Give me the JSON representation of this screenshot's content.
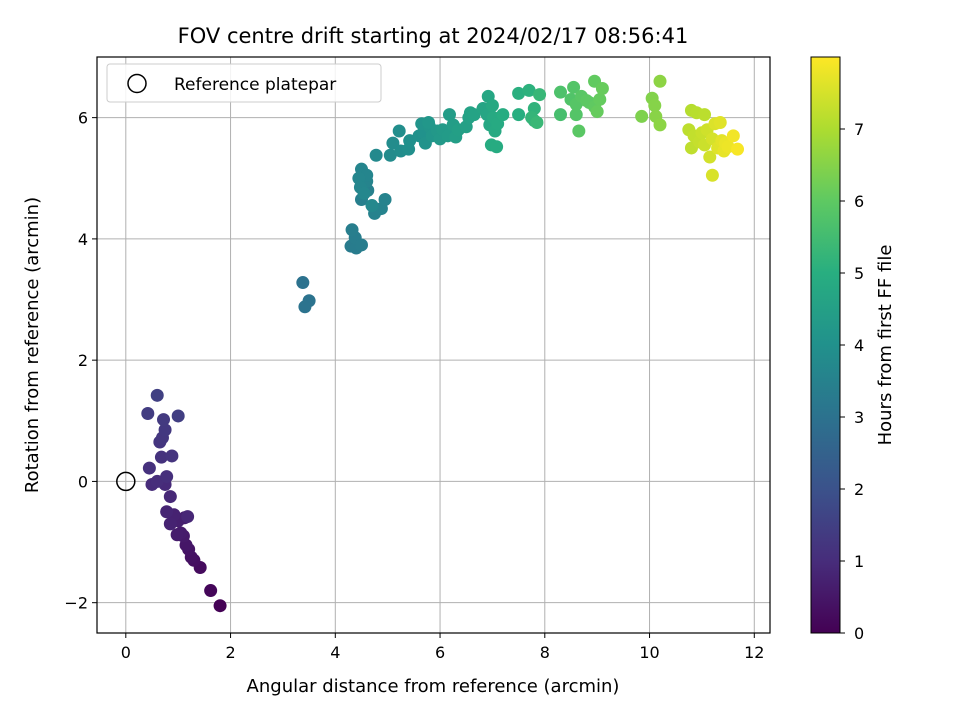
{
  "chart_data": {
    "type": "scatter",
    "title": "FOV centre drift starting at 2024/02/17 08:56:41",
    "xlabel": "Angular distance from reference (arcmin)",
    "ylabel": "Rotation from reference (arcmin)",
    "xlim": [
      -0.55,
      12.3
    ],
    "ylim": [
      -2.5,
      7.0
    ],
    "xticks": [
      "0",
      "2",
      "4",
      "6",
      "8",
      "10",
      "12"
    ],
    "yticks": [
      "−2",
      "0",
      "2",
      "4",
      "6"
    ],
    "grid": true,
    "legend": {
      "placement": "upper-left",
      "entries": [
        "Reference platepar"
      ]
    },
    "reference_point": {
      "x": 0,
      "y": 0
    },
    "colorbar": {
      "label": "Hours from first FF file",
      "range": [
        0,
        8.0
      ],
      "ticks": [
        "0",
        "1",
        "2",
        "3",
        "4",
        "5",
        "6",
        "7"
      ],
      "colormap": "viridis"
    },
    "points": [
      {
        "x": 1.8,
        "y": -2.05,
        "c": 0.02
      },
      {
        "x": 1.62,
        "y": -1.8,
        "c": 0.12
      },
      {
        "x": 1.42,
        "y": -1.42,
        "c": 0.22
      },
      {
        "x": 1.3,
        "y": -1.3,
        "c": 0.3
      },
      {
        "x": 1.25,
        "y": -1.25,
        "c": 0.36
      },
      {
        "x": 1.2,
        "y": -1.12,
        "c": 0.42
      },
      {
        "x": 1.15,
        "y": -1.05,
        "c": 0.48
      },
      {
        "x": 1.1,
        "y": -0.9,
        "c": 0.54
      },
      {
        "x": 1.05,
        "y": -0.85,
        "c": 0.58
      },
      {
        "x": 0.98,
        "y": -0.88,
        "c": 0.62
      },
      {
        "x": 1.12,
        "y": -0.6,
        "c": 0.66
      },
      {
        "x": 1.0,
        "y": -0.65,
        "c": 0.7
      },
      {
        "x": 0.92,
        "y": -0.55,
        "c": 0.74
      },
      {
        "x": 0.85,
        "y": -0.7,
        "c": 0.78
      },
      {
        "x": 0.78,
        "y": -0.5,
        "c": 0.82
      },
      {
        "x": 1.18,
        "y": -0.58,
        "c": 0.86
      },
      {
        "x": 0.85,
        "y": -0.25,
        "c": 0.9
      },
      {
        "x": 0.75,
        "y": -0.05,
        "c": 0.94
      },
      {
        "x": 0.5,
        "y": -0.05,
        "c": 0.98
      },
      {
        "x": 0.6,
        "y": 0.0,
        "c": 1.02
      },
      {
        "x": 0.78,
        "y": 0.08,
        "c": 1.06
      },
      {
        "x": 0.45,
        "y": 0.22,
        "c": 1.1
      },
      {
        "x": 0.68,
        "y": 0.4,
        "c": 1.14
      },
      {
        "x": 0.88,
        "y": 0.42,
        "c": 1.18
      },
      {
        "x": 0.65,
        "y": 0.65,
        "c": 1.22
      },
      {
        "x": 0.7,
        "y": 0.72,
        "c": 1.26
      },
      {
        "x": 0.75,
        "y": 0.85,
        "c": 1.3
      },
      {
        "x": 0.72,
        "y": 1.02,
        "c": 1.34
      },
      {
        "x": 0.42,
        "y": 1.12,
        "c": 1.4
      },
      {
        "x": 1.0,
        "y": 1.08,
        "c": 1.46
      },
      {
        "x": 0.6,
        "y": 1.42,
        "c": 1.52
      },
      {
        "x": 3.38,
        "y": 3.28,
        "c": 3.0
      },
      {
        "x": 3.5,
        "y": 2.98,
        "c": 3.02
      },
      {
        "x": 3.42,
        "y": 2.88,
        "c": 3.04
      },
      {
        "x": 4.3,
        "y": 3.88,
        "c": 3.3
      },
      {
        "x": 4.4,
        "y": 3.85,
        "c": 3.32
      },
      {
        "x": 4.38,
        "y": 4.02,
        "c": 3.34
      },
      {
        "x": 4.5,
        "y": 3.9,
        "c": 3.36
      },
      {
        "x": 4.32,
        "y": 4.15,
        "c": 3.38
      },
      {
        "x": 4.5,
        "y": 4.65,
        "c": 3.42
      },
      {
        "x": 4.62,
        "y": 4.8,
        "c": 3.46
      },
      {
        "x": 4.75,
        "y": 4.42,
        "c": 3.5
      },
      {
        "x": 4.88,
        "y": 4.5,
        "c": 3.54
      },
      {
        "x": 4.95,
        "y": 4.65,
        "c": 3.56
      },
      {
        "x": 4.6,
        "y": 4.95,
        "c": 3.58
      },
      {
        "x": 4.5,
        "y": 5.15,
        "c": 3.6
      },
      {
        "x": 4.6,
        "y": 5.05,
        "c": 3.62
      },
      {
        "x": 4.45,
        "y": 5.0,
        "c": 3.64
      },
      {
        "x": 4.48,
        "y": 4.85,
        "c": 3.66
      },
      {
        "x": 4.55,
        "y": 4.75,
        "c": 3.68
      },
      {
        "x": 4.7,
        "y": 4.55,
        "c": 3.7
      },
      {
        "x": 4.78,
        "y": 5.38,
        "c": 3.74
      },
      {
        "x": 5.05,
        "y": 5.38,
        "c": 3.8
      },
      {
        "x": 5.1,
        "y": 5.58,
        "c": 3.84
      },
      {
        "x": 5.25,
        "y": 5.45,
        "c": 3.88
      },
      {
        "x": 5.22,
        "y": 5.78,
        "c": 3.9
      },
      {
        "x": 5.4,
        "y": 5.48,
        "c": 3.94
      },
      {
        "x": 5.42,
        "y": 5.62,
        "c": 3.96
      },
      {
        "x": 5.6,
        "y": 5.7,
        "c": 4.0
      },
      {
        "x": 5.68,
        "y": 5.75,
        "c": 4.04
      },
      {
        "x": 5.72,
        "y": 5.58,
        "c": 4.08
      },
      {
        "x": 5.65,
        "y": 5.9,
        "c": 4.1
      },
      {
        "x": 5.8,
        "y": 5.85,
        "c": 4.14
      },
      {
        "x": 5.85,
        "y": 5.7,
        "c": 4.16
      },
      {
        "x": 5.78,
        "y": 5.92,
        "c": 4.2
      },
      {
        "x": 5.95,
        "y": 5.78,
        "c": 4.24
      },
      {
        "x": 6.0,
        "y": 5.65,
        "c": 4.28
      },
      {
        "x": 6.05,
        "y": 5.8,
        "c": 4.3
      },
      {
        "x": 6.15,
        "y": 5.7,
        "c": 4.34
      },
      {
        "x": 6.18,
        "y": 6.05,
        "c": 4.38
      },
      {
        "x": 6.25,
        "y": 5.88,
        "c": 4.42
      },
      {
        "x": 6.3,
        "y": 5.68,
        "c": 4.44
      },
      {
        "x": 6.35,
        "y": 5.8,
        "c": 4.48
      },
      {
        "x": 6.5,
        "y": 5.85,
        "c": 4.5
      },
      {
        "x": 6.55,
        "y": 6.0,
        "c": 4.54
      },
      {
        "x": 6.58,
        "y": 6.08,
        "c": 4.58
      },
      {
        "x": 6.65,
        "y": 6.05,
        "c": 4.62
      },
      {
        "x": 6.82,
        "y": 6.15,
        "c": 4.66
      },
      {
        "x": 6.9,
        "y": 6.05,
        "c": 4.7
      },
      {
        "x": 6.92,
        "y": 6.35,
        "c": 4.72
      },
      {
        "x": 6.95,
        "y": 5.88,
        "c": 4.76
      },
      {
        "x": 7.0,
        "y": 6.2,
        "c": 4.8
      },
      {
        "x": 7.02,
        "y": 6.0,
        "c": 4.82
      },
      {
        "x": 7.05,
        "y": 5.78,
        "c": 4.84
      },
      {
        "x": 7.1,
        "y": 5.9,
        "c": 4.86
      },
      {
        "x": 6.98,
        "y": 5.55,
        "c": 4.88
      },
      {
        "x": 7.08,
        "y": 5.52,
        "c": 4.9
      },
      {
        "x": 7.2,
        "y": 6.05,
        "c": 4.92
      },
      {
        "x": 7.5,
        "y": 6.05,
        "c": 5.0
      },
      {
        "x": 7.5,
        "y": 6.4,
        "c": 5.04
      },
      {
        "x": 7.7,
        "y": 6.45,
        "c": 5.1
      },
      {
        "x": 7.8,
        "y": 6.15,
        "c": 5.16
      },
      {
        "x": 7.8,
        "y": 5.95,
        "c": 5.2
      },
      {
        "x": 7.75,
        "y": 6.0,
        "c": 5.24
      },
      {
        "x": 7.9,
        "y": 6.38,
        "c": 5.3
      },
      {
        "x": 7.85,
        "y": 5.92,
        "c": 5.34
      },
      {
        "x": 8.3,
        "y": 6.05,
        "c": 5.6
      },
      {
        "x": 8.3,
        "y": 6.42,
        "c": 5.7
      },
      {
        "x": 8.5,
        "y": 6.3,
        "c": 5.76
      },
      {
        "x": 8.55,
        "y": 6.5,
        "c": 5.8
      },
      {
        "x": 8.6,
        "y": 6.05,
        "c": 5.82
      },
      {
        "x": 8.6,
        "y": 6.22,
        "c": 5.86
      },
      {
        "x": 8.7,
        "y": 6.35,
        "c": 5.9
      },
      {
        "x": 8.65,
        "y": 5.78,
        "c": 5.92
      },
      {
        "x": 8.8,
        "y": 6.28,
        "c": 5.96
      },
      {
        "x": 8.85,
        "y": 6.25,
        "c": 5.98
      },
      {
        "x": 8.95,
        "y": 6.18,
        "c": 6.02
      },
      {
        "x": 8.95,
        "y": 6.6,
        "c": 6.04
      },
      {
        "x": 9.05,
        "y": 6.3,
        "c": 6.08
      },
      {
        "x": 9.0,
        "y": 6.1,
        "c": 6.1
      },
      {
        "x": 9.1,
        "y": 6.48,
        "c": 6.12
      },
      {
        "x": 9.85,
        "y": 6.02,
        "c": 6.4
      },
      {
        "x": 10.05,
        "y": 6.32,
        "c": 6.46
      },
      {
        "x": 10.1,
        "y": 6.2,
        "c": 6.5
      },
      {
        "x": 10.12,
        "y": 6.02,
        "c": 6.54
      },
      {
        "x": 10.2,
        "y": 5.88,
        "c": 6.58
      },
      {
        "x": 10.2,
        "y": 6.6,
        "c": 6.6
      },
      {
        "x": 10.8,
        "y": 6.12,
        "c": 7.1
      },
      {
        "x": 10.9,
        "y": 6.08,
        "c": 7.14
      },
      {
        "x": 11.05,
        "y": 6.05,
        "c": 7.18
      },
      {
        "x": 10.75,
        "y": 5.8,
        "c": 7.2
      },
      {
        "x": 10.8,
        "y": 5.5,
        "c": 7.22
      },
      {
        "x": 10.85,
        "y": 5.7,
        "c": 7.26
      },
      {
        "x": 10.95,
        "y": 5.6,
        "c": 7.3
      },
      {
        "x": 11.0,
        "y": 5.75,
        "c": 7.34
      },
      {
        "x": 11.05,
        "y": 5.55,
        "c": 7.38
      },
      {
        "x": 11.1,
        "y": 5.8,
        "c": 7.42
      },
      {
        "x": 11.15,
        "y": 5.35,
        "c": 7.46
      },
      {
        "x": 11.2,
        "y": 5.65,
        "c": 7.5
      },
      {
        "x": 11.2,
        "y": 5.05,
        "c": 7.54
      },
      {
        "x": 11.25,
        "y": 5.9,
        "c": 7.58
      },
      {
        "x": 11.3,
        "y": 5.5,
        "c": 7.62
      },
      {
        "x": 11.35,
        "y": 5.92,
        "c": 7.64
      },
      {
        "x": 11.38,
        "y": 5.62,
        "c": 7.68
      },
      {
        "x": 11.42,
        "y": 5.45,
        "c": 7.72
      },
      {
        "x": 11.45,
        "y": 5.58,
        "c": 7.76
      },
      {
        "x": 11.5,
        "y": 5.52,
        "c": 7.8
      },
      {
        "x": 11.6,
        "y": 5.7,
        "c": 7.86
      },
      {
        "x": 11.68,
        "y": 5.48,
        "c": 7.92
      }
    ]
  }
}
